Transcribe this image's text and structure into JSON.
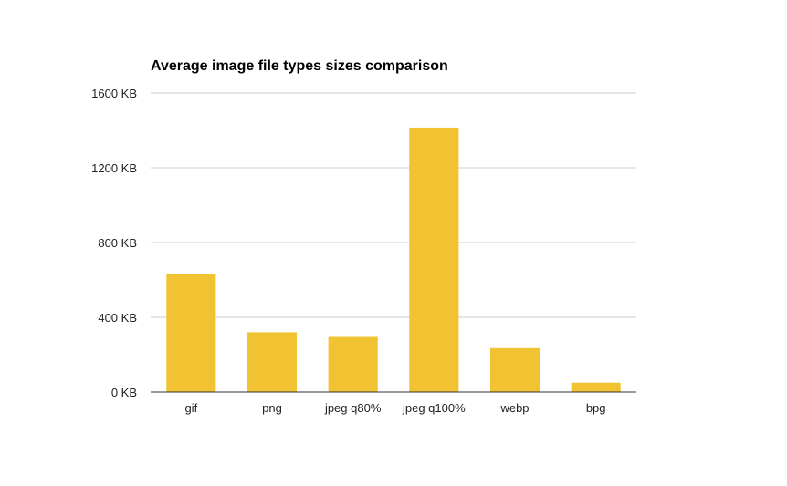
{
  "chart_data": {
    "type": "bar",
    "title": "Average image file types sizes comparison",
    "xlabel": "",
    "ylabel": "",
    "unit": "KB",
    "categories": [
      "gif",
      "png",
      "jpeg q80%",
      "jpeg q100%",
      "webp",
      "bpg"
    ],
    "values": [
      632,
      320,
      295,
      1415,
      235,
      50
    ],
    "ylim": [
      0,
      1600
    ],
    "yticks": [
      0,
      400,
      800,
      1200,
      1600
    ],
    "ytick_labels": [
      "0 KB",
      "400 KB",
      "800 KB",
      "1200 KB",
      "1600 KB"
    ],
    "grid": true,
    "legend": "none",
    "bar_color": "#f1c232"
  }
}
